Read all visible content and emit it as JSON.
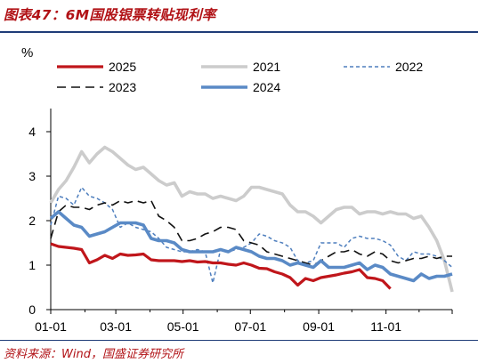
{
  "header": {
    "title": "图表47：6M国股银票转贴现利率"
  },
  "footer": {
    "source": "资料来源：Wind，国盛证券研究所"
  },
  "chart_data": {
    "type": "line",
    "unit_label": "%",
    "xlabel": "",
    "ylabel": "",
    "x_ticks": [
      "01-01",
      "03-01",
      "05-01",
      "07-01",
      "09-01",
      "11-01"
    ],
    "y_ticks": [
      0,
      1,
      2,
      3,
      4
    ],
    "ylim": [
      0,
      4.4
    ],
    "xlim_days": [
      1,
      365
    ],
    "grid": false,
    "legend_position": "top",
    "series": [
      {
        "name": "2025",
        "color": "#c0161b",
        "style": "solid",
        "width": 3.2,
        "x": [
          "01-01",
          "01-08",
          "01-15",
          "01-22",
          "01-29",
          "02-05",
          "02-12",
          "02-19",
          "02-26",
          "03-05",
          "03-12",
          "03-19",
          "03-26",
          "04-02",
          "04-09",
          "04-16",
          "04-23",
          "04-30",
          "05-07",
          "05-14",
          "05-21",
          "05-28",
          "06-04",
          "06-11",
          "06-18",
          "06-25",
          "07-02",
          "07-09",
          "07-16",
          "07-23",
          "07-30",
          "08-06",
          "08-13",
          "08-20",
          "08-27",
          "09-03",
          "09-10",
          "09-17",
          "09-24",
          "10-01",
          "10-08",
          "10-15",
          "10-22",
          "10-29",
          "11-05"
        ],
        "y": [
          1.48,
          1.42,
          1.4,
          1.38,
          1.35,
          1.05,
          1.12,
          1.22,
          1.15,
          1.25,
          1.22,
          1.23,
          1.25,
          1.12,
          1.1,
          1.1,
          1.1,
          1.08,
          1.1,
          1.07,
          1.08,
          1.05,
          1.05,
          1.02,
          1.0,
          1.05,
          1.0,
          0.93,
          0.92,
          0.85,
          0.8,
          0.72,
          0.55,
          0.7,
          0.65,
          0.72,
          0.75,
          0.78,
          0.82,
          0.85,
          0.9,
          0.72,
          0.7,
          0.65,
          0.47
        ]
      },
      {
        "name": "2021",
        "color": "#cccccc",
        "style": "solid",
        "width": 3.6,
        "x": [
          "01-01",
          "01-08",
          "01-15",
          "01-22",
          "01-29",
          "02-05",
          "02-12",
          "02-19",
          "02-26",
          "03-05",
          "03-12",
          "03-19",
          "03-26",
          "04-02",
          "04-09",
          "04-16",
          "04-23",
          "04-30",
          "05-07",
          "05-14",
          "05-21",
          "05-28",
          "06-04",
          "06-11",
          "06-18",
          "06-25",
          "07-02",
          "07-09",
          "07-16",
          "07-23",
          "07-30",
          "08-06",
          "08-13",
          "08-20",
          "08-27",
          "09-03",
          "09-10",
          "09-17",
          "09-24",
          "10-01",
          "10-08",
          "10-15",
          "10-22",
          "10-29",
          "11-05",
          "11-12",
          "11-19",
          "11-26",
          "12-03",
          "12-10",
          "12-17",
          "12-24",
          "12-31"
        ],
        "y": [
          2.4,
          2.7,
          2.9,
          3.2,
          3.55,
          3.3,
          3.5,
          3.65,
          3.55,
          3.4,
          3.25,
          3.15,
          3.2,
          3.05,
          2.9,
          2.8,
          2.85,
          2.55,
          2.65,
          2.6,
          2.6,
          2.5,
          2.55,
          2.5,
          2.45,
          2.55,
          2.75,
          2.75,
          2.7,
          2.65,
          2.6,
          2.35,
          2.2,
          2.2,
          2.1,
          1.95,
          2.1,
          2.25,
          2.3,
          2.3,
          2.15,
          2.2,
          2.2,
          2.15,
          2.2,
          2.15,
          2.15,
          2.05,
          2.1,
          1.85,
          1.55,
          1.1,
          0.4
        ]
      },
      {
        "name": "2022",
        "color": "#4f7fbe",
        "style": "dash",
        "width": 1.5,
        "x": [
          "01-01",
          "01-08",
          "01-15",
          "01-22",
          "01-29",
          "02-05",
          "02-12",
          "02-19",
          "02-26",
          "03-05",
          "03-12",
          "03-19",
          "03-26",
          "04-02",
          "04-09",
          "04-16",
          "04-23",
          "04-30",
          "05-07",
          "05-14",
          "05-21",
          "05-28",
          "06-04",
          "06-11",
          "06-18",
          "06-25",
          "07-02",
          "07-09",
          "07-16",
          "07-23",
          "07-30",
          "08-06",
          "08-13",
          "08-20",
          "08-27",
          "09-03",
          "09-10",
          "09-17",
          "09-24",
          "10-01",
          "10-08",
          "10-15",
          "10-22",
          "10-29",
          "11-05",
          "11-12",
          "11-19",
          "11-26",
          "12-03",
          "12-10",
          "12-17",
          "12-24",
          "12-31"
        ],
        "y": [
          1.9,
          2.55,
          2.5,
          2.35,
          2.75,
          2.55,
          2.5,
          2.4,
          2.25,
          1.85,
          1.95,
          1.85,
          1.8,
          1.75,
          1.6,
          1.4,
          1.35,
          1.3,
          1.3,
          1.35,
          1.3,
          0.6,
          1.35,
          1.3,
          1.35,
          1.4,
          1.5,
          1.7,
          1.65,
          1.55,
          1.5,
          1.4,
          1.1,
          1.05,
          1.1,
          1.5,
          1.5,
          1.5,
          1.4,
          1.6,
          1.65,
          1.6,
          1.6,
          1.55,
          1.45,
          1.2,
          1.1,
          1.3,
          1.25,
          1.25,
          1.2,
          1.1,
          0.95
        ]
      },
      {
        "name": "2023",
        "color": "#111111",
        "style": "longdash",
        "width": 1.6,
        "x": [
          "01-01",
          "01-08",
          "01-15",
          "01-22",
          "01-29",
          "02-05",
          "02-12",
          "02-19",
          "02-26",
          "03-05",
          "03-12",
          "03-19",
          "03-26",
          "04-02",
          "04-09",
          "04-16",
          "04-23",
          "04-30",
          "05-07",
          "05-14",
          "05-21",
          "05-28",
          "06-04",
          "06-11",
          "06-18",
          "06-25",
          "07-02",
          "07-09",
          "07-16",
          "07-23",
          "07-30",
          "08-06",
          "08-13",
          "08-20",
          "08-27",
          "09-03",
          "09-10",
          "09-17",
          "09-24",
          "10-01",
          "10-08",
          "10-15",
          "10-22",
          "10-29",
          "11-05",
          "11-12",
          "11-19",
          "11-26",
          "12-03",
          "12-10",
          "12-17",
          "12-24",
          "12-31"
        ],
        "y": [
          1.6,
          2.2,
          2.35,
          2.3,
          2.3,
          2.25,
          2.35,
          2.4,
          2.35,
          2.45,
          2.4,
          2.45,
          2.4,
          2.45,
          2.1,
          2.0,
          1.85,
          1.55,
          1.55,
          1.6,
          1.7,
          1.75,
          1.85,
          1.85,
          1.8,
          1.55,
          1.5,
          1.45,
          1.3,
          1.25,
          1.2,
          1.15,
          1.1,
          1.05,
          1.0,
          1.1,
          1.2,
          1.3,
          1.3,
          1.35,
          1.25,
          1.2,
          1.3,
          1.25,
          1.1,
          1.05,
          1.1,
          1.15,
          1.15,
          1.2,
          1.15,
          1.2,
          1.2
        ]
      },
      {
        "name": "2024",
        "color": "#5a8ac6",
        "style": "solid",
        "width": 3.6,
        "x": [
          "01-01",
          "01-08",
          "01-15",
          "01-22",
          "01-29",
          "02-05",
          "02-12",
          "02-19",
          "02-26",
          "03-05",
          "03-12",
          "03-19",
          "03-26",
          "04-02",
          "04-09",
          "04-16",
          "04-23",
          "04-30",
          "05-07",
          "05-14",
          "05-21",
          "05-28",
          "06-04",
          "06-11",
          "06-18",
          "06-25",
          "07-02",
          "07-09",
          "07-16",
          "07-23",
          "07-30",
          "08-06",
          "08-13",
          "08-20",
          "08-27",
          "09-03",
          "09-10",
          "09-17",
          "09-24",
          "10-01",
          "10-08",
          "10-15",
          "10-22",
          "10-29",
          "11-05",
          "11-12",
          "11-19",
          "11-26",
          "12-03",
          "12-10",
          "12-17",
          "12-24",
          "12-31"
        ],
        "y": [
          2.05,
          2.2,
          2.05,
          1.9,
          1.85,
          1.65,
          1.7,
          1.75,
          1.85,
          1.95,
          1.95,
          1.95,
          1.9,
          1.6,
          1.55,
          1.55,
          1.5,
          1.35,
          1.3,
          1.3,
          1.3,
          1.3,
          1.35,
          1.3,
          1.4,
          1.35,
          1.3,
          1.2,
          1.15,
          1.15,
          1.1,
          1.0,
          1.05,
          1.0,
          0.95,
          1.1,
          0.95,
          0.95,
          0.95,
          1.0,
          1.05,
          0.9,
          1.0,
          0.95,
          0.8,
          0.75,
          0.7,
          0.65,
          0.8,
          0.7,
          0.75,
          0.75,
          0.8
        ]
      }
    ]
  }
}
